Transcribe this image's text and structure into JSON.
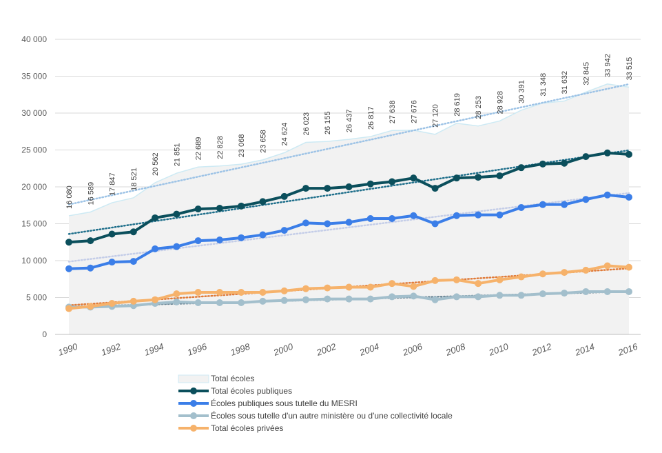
{
  "chart_data": {
    "type": "line",
    "title": "",
    "xlabel": "",
    "ylabel": "",
    "ylim": [
      0,
      40000
    ],
    "yticks": [
      0,
      5000,
      10000,
      15000,
      20000,
      25000,
      30000,
      35000,
      40000
    ],
    "ytick_labels": [
      "0",
      "5 000",
      "10 000",
      "15 000",
      "20 000",
      "25 000",
      "30 000",
      "35 000",
      "40 000"
    ],
    "x": [
      1990,
      1991,
      1992,
      1993,
      1994,
      1995,
      1996,
      1997,
      1998,
      1999,
      2000,
      2001,
      2002,
      2003,
      2004,
      2005,
      2006,
      2007,
      2008,
      2009,
      2010,
      2011,
      2012,
      2013,
      2014,
      2015,
      2016
    ],
    "xticks": [
      1990,
      1992,
      1994,
      1996,
      1998,
      2000,
      2002,
      2004,
      2006,
      2008,
      2010,
      2012,
      2014,
      2016
    ],
    "xtick_labels": [
      "1990",
      "1992",
      "1994",
      "1996",
      "1998",
      "2000",
      "2002",
      "2004",
      "2006",
      "2008",
      "2010",
      "2012",
      "2014",
      "2016"
    ],
    "grid": true,
    "legend_position": "bottom",
    "series": [
      {
        "name": "Total écoles",
        "kind": "area",
        "color": "#f2f2f2",
        "edge_color": "#cdeaf4",
        "trend_color": "#9dc3e6",
        "values": [
          16080,
          16589,
          17847,
          18521,
          20562,
          21851,
          22689,
          22828,
          23068,
          23658,
          24624,
          26023,
          26155,
          26437,
          26817,
          27638,
          27676,
          27120,
          28619,
          28253,
          28928,
          30391,
          31348,
          31632,
          32845,
          33942,
          33515
        ],
        "labels": [
          "16 080",
          "16 589",
          "17 847",
          "18 521",
          "20 562",
          "21 851",
          "22 689",
          "22 828",
          "23 068",
          "23 658",
          "24 624",
          "26 023",
          "26 155",
          "26 437",
          "26 817",
          "27 638",
          "27 676",
          "27 120",
          "28 619",
          "28 253",
          "28 928",
          "30 391",
          "31 348",
          "31 632",
          "32 845",
          "33 942",
          "33 515"
        ]
      },
      {
        "name": "Total écoles publiques",
        "kind": "line",
        "color": "#0b4f5c",
        "trend_color": "#1f6f8b",
        "values": [
          12500,
          12700,
          13600,
          13900,
          15800,
          16300,
          17000,
          17100,
          17400,
          18000,
          18700,
          19800,
          19800,
          20000,
          20400,
          20700,
          21200,
          19800,
          21200,
          21300,
          21500,
          22600,
          23100,
          23200,
          24100,
          24600,
          24400
        ]
      },
      {
        "name": "Écoles publiques sous tutelle du MESRI",
        "kind": "line",
        "color": "#3b7ee8",
        "trend_color": "#c4cde8",
        "values": [
          8900,
          9000,
          9800,
          9900,
          11600,
          11900,
          12700,
          12800,
          13100,
          13500,
          14100,
          15100,
          15000,
          15200,
          15700,
          15700,
          16100,
          15000,
          16100,
          16200,
          16200,
          17200,
          17600,
          17600,
          18300,
          18900,
          18600
        ]
      },
      {
        "name": "Écoles sous tutelle d'un autre ministère ou d'une collectivité locale",
        "kind": "line",
        "color": "#a3bfcc",
        "trend_color": "#6f8a99",
        "values": [
          3700,
          3700,
          3800,
          3900,
          4200,
          4400,
          4300,
          4300,
          4300,
          4500,
          4600,
          4700,
          4800,
          4800,
          4800,
          5100,
          5200,
          4700,
          5100,
          5100,
          5300,
          5300,
          5500,
          5600,
          5800,
          5800,
          5800
        ]
      },
      {
        "name": "Total écoles privées",
        "kind": "line",
        "color": "#f6b26b",
        "trend_color": "#e07b39",
        "values": [
          3500,
          3800,
          4200,
          4500,
          4700,
          5500,
          5700,
          5700,
          5700,
          5700,
          5900,
          6200,
          6300,
          6400,
          6400,
          6900,
          6500,
          7300,
          7400,
          6900,
          7400,
          7800,
          8200,
          8400,
          8700,
          9300,
          9100
        ]
      }
    ]
  }
}
